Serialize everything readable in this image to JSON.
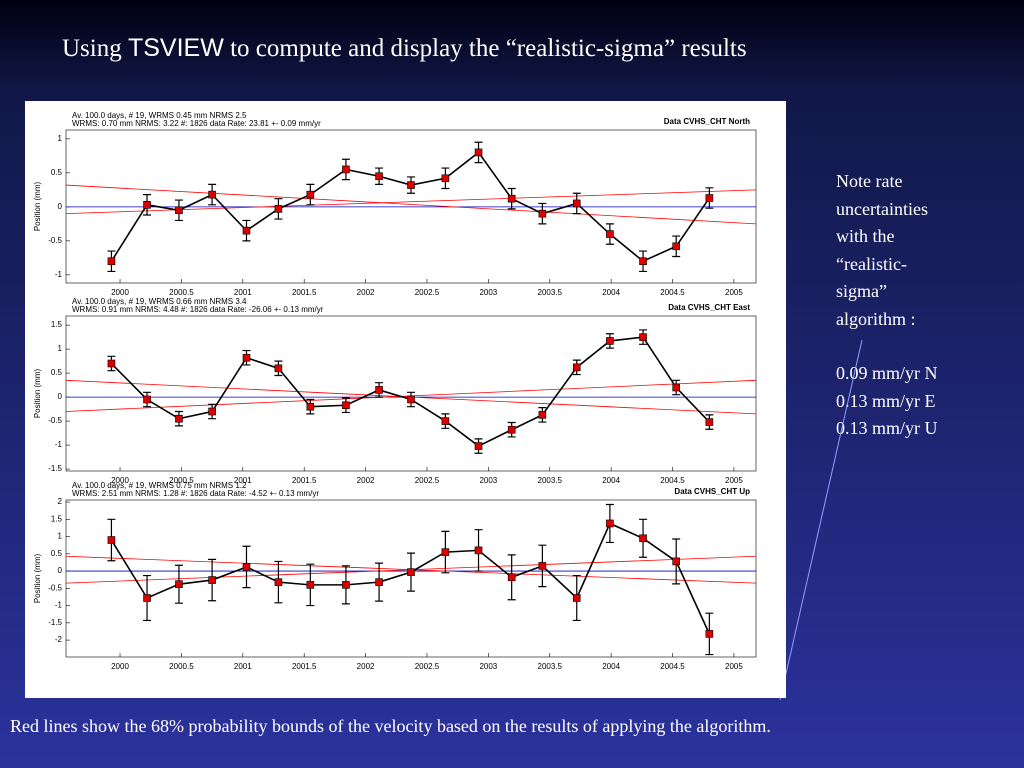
{
  "title": [
    "Using ",
    "TSVIEW",
    " to compute and display the “realistic-sigma” results"
  ],
  "note": [
    "Note rate",
    "uncertainties",
    "with the",
    "“realistic-",
    "sigma”",
    "algorithm :"
  ],
  "rates": [
    "0.09  mm/yr N",
    "0.13 mm/yr E",
    "0.13 mm/yr U"
  ],
  "caption": "Red lines show the 68% probability bounds of the velocity based on the results of applying the algorithm.",
  "chart_data": [
    {
      "type": "line",
      "header": [
        "Av. 100.0 days, # 19, WRMS   0.45 mm NRMS    2.5",
        "WRMS:    0.70 mm NRMS:   3.22 #:   1826 data   Rate:      23.81 +-    0.09 mm/yr"
      ],
      "label": "Data CVHS_CHT North",
      "ylabel": "Position (mm)",
      "xlim": [
        1999.56,
        2005.18
      ],
      "ylim": [
        -1.12,
        1.13
      ],
      "xticks": [
        2000,
        2000.5,
        2001,
        2001.5,
        2002,
        2002.5,
        2003,
        2003.5,
        2004,
        2004.5,
        2005
      ],
      "yticks": [
        -1,
        -0.5,
        0,
        0.5,
        1
      ],
      "x": [
        1999.93,
        2000.22,
        2000.48,
        2000.75,
        2001.03,
        2001.29,
        2001.55,
        2001.84,
        2002.11,
        2002.37,
        2002.65,
        2002.92,
        2003.19,
        2003.44,
        2003.72,
        2003.99,
        2004.26,
        2004.53,
        2004.8
      ],
      "series": [
        {
          "color": "#0000cc",
          "x": [
            1999.56,
            2005.18
          ],
          "values": [
            0,
            0
          ]
        },
        {
          "color": "#ff0000",
          "x": [
            1999.56,
            2005.18
          ],
          "values": [
            0.32,
            -0.25
          ]
        },
        {
          "color": "#ff0000",
          "x": [
            1999.56,
            2005.18
          ],
          "values": [
            -0.1,
            0.25
          ]
        },
        {
          "color": "#000000",
          "marker_color": "#dd0000",
          "values": [
            -0.8,
            0.03,
            -0.05,
            0.18,
            -0.35,
            -0.03,
            0.18,
            0.55,
            0.45,
            0.32,
            0.42,
            0.8,
            0.12,
            -0.1,
            0.05,
            -0.4,
            -0.8,
            -0.58,
            0.13
          ],
          "errors": [
            0.15,
            0.15,
            0.15,
            0.15,
            0.15,
            0.15,
            0.15,
            0.15,
            0.12,
            0.12,
            0.15,
            0.15,
            0.15,
            0.15,
            0.15,
            0.15,
            0.15,
            0.15,
            0.15
          ]
        }
      ]
    },
    {
      "type": "line",
      "header": [
        "Av. 100.0 days, # 19, WRMS   0.66 mm NRMS    3.4",
        "WRMS:    0.91 mm NRMS:   4.48 #:   1826 data   Rate:     -26.06 +-    0.13 mm/yr"
      ],
      "label": "Data CVHS_CHT East",
      "ylabel": "Position (mm)",
      "xlim": [
        1999.56,
        2005.18
      ],
      "ylim": [
        -1.54,
        1.69
      ],
      "xticks": [
        2000,
        2000.5,
        2001,
        2001.5,
        2002,
        2002.5,
        2003,
        2003.5,
        2004,
        2004.5,
        2005
      ],
      "yticks": [
        -1.5,
        -1,
        -0.5,
        0,
        0.5,
        1,
        1.5
      ],
      "x": [
        1999.93,
        2000.22,
        2000.48,
        2000.75,
        2001.03,
        2001.29,
        2001.55,
        2001.84,
        2002.11,
        2002.37,
        2002.65,
        2002.92,
        2003.19,
        2003.44,
        2003.72,
        2003.99,
        2004.26,
        2004.53,
        2004.8
      ],
      "series": [
        {
          "color": "#0000cc",
          "x": [
            1999.56,
            2005.18
          ],
          "values": [
            0,
            0
          ]
        },
        {
          "color": "#ff0000",
          "x": [
            1999.56,
            2005.18
          ],
          "values": [
            0.35,
            -0.35
          ]
        },
        {
          "color": "#ff0000",
          "x": [
            1999.56,
            2005.18
          ],
          "values": [
            -0.3,
            0.35
          ]
        },
        {
          "color": "#000000",
          "marker_color": "#dd0000",
          "values": [
            0.7,
            -0.05,
            -0.45,
            -0.3,
            0.82,
            0.6,
            -0.2,
            -0.17,
            0.15,
            -0.05,
            -0.5,
            -1.02,
            -0.68,
            -0.37,
            0.62,
            1.17,
            1.25,
            0.2,
            -0.52
          ],
          "errors": [
            0.15,
            0.15,
            0.15,
            0.15,
            0.15,
            0.15,
            0.15,
            0.15,
            0.15,
            0.15,
            0.15,
            0.15,
            0.15,
            0.15,
            0.15,
            0.15,
            0.15,
            0.15,
            0.15
          ]
        }
      ]
    },
    {
      "type": "line",
      "header": [
        "Av. 100.0 days, # 19, WRMS   0.75 mm NRMS    1.2",
        "WRMS:    2.51 mm NRMS:   1.28 #:   1826 data   Rate:      -4.52 +-    0.13 mm/yr"
      ],
      "label": "Data CVHS_CHT Up",
      "ylabel": "Position (mm)",
      "xlim": [
        1999.56,
        2005.18
      ],
      "ylim": [
        -2.49,
        2.06
      ],
      "xticks": [
        2000,
        2000.5,
        2001,
        2001.5,
        2002,
        2002.5,
        2003,
        2003.5,
        2004,
        2004.5,
        2005
      ],
      "yticks": [
        -2,
        -1.5,
        -1,
        -0.5,
        0,
        0.5,
        1,
        1.5,
        2
      ],
      "x": [
        1999.93,
        2000.22,
        2000.48,
        2000.75,
        2001.03,
        2001.29,
        2001.55,
        2001.84,
        2002.11,
        2002.37,
        2002.65,
        2002.92,
        2003.19,
        2003.44,
        2003.72,
        2003.99,
        2004.26,
        2004.53,
        2004.8
      ],
      "series": [
        {
          "color": "#0000cc",
          "x": [
            1999.56,
            2005.18
          ],
          "values": [
            0,
            0
          ]
        },
        {
          "color": "#ff0000",
          "x": [
            1999.56,
            2005.18
          ],
          "values": [
            0.43,
            -0.35
          ]
        },
        {
          "color": "#ff0000",
          "x": [
            1999.56,
            2005.18
          ],
          "values": [
            -0.35,
            0.43
          ]
        },
        {
          "color": "#000000",
          "marker_color": "#dd0000",
          "values": [
            0.9,
            -0.78,
            -0.38,
            -0.26,
            0.12,
            -0.32,
            -0.4,
            -0.4,
            -0.32,
            -0.03,
            0.55,
            0.6,
            -0.18,
            0.15,
            -0.78,
            1.38,
            0.95,
            0.28,
            -1.82
          ],
          "errors": [
            0.6,
            0.65,
            0.55,
            0.6,
            0.6,
            0.6,
            0.6,
            0.55,
            0.55,
            0.55,
            0.6,
            0.6,
            0.65,
            0.6,
            0.65,
            0.55,
            0.55,
            0.65,
            0.6
          ]
        }
      ]
    }
  ]
}
